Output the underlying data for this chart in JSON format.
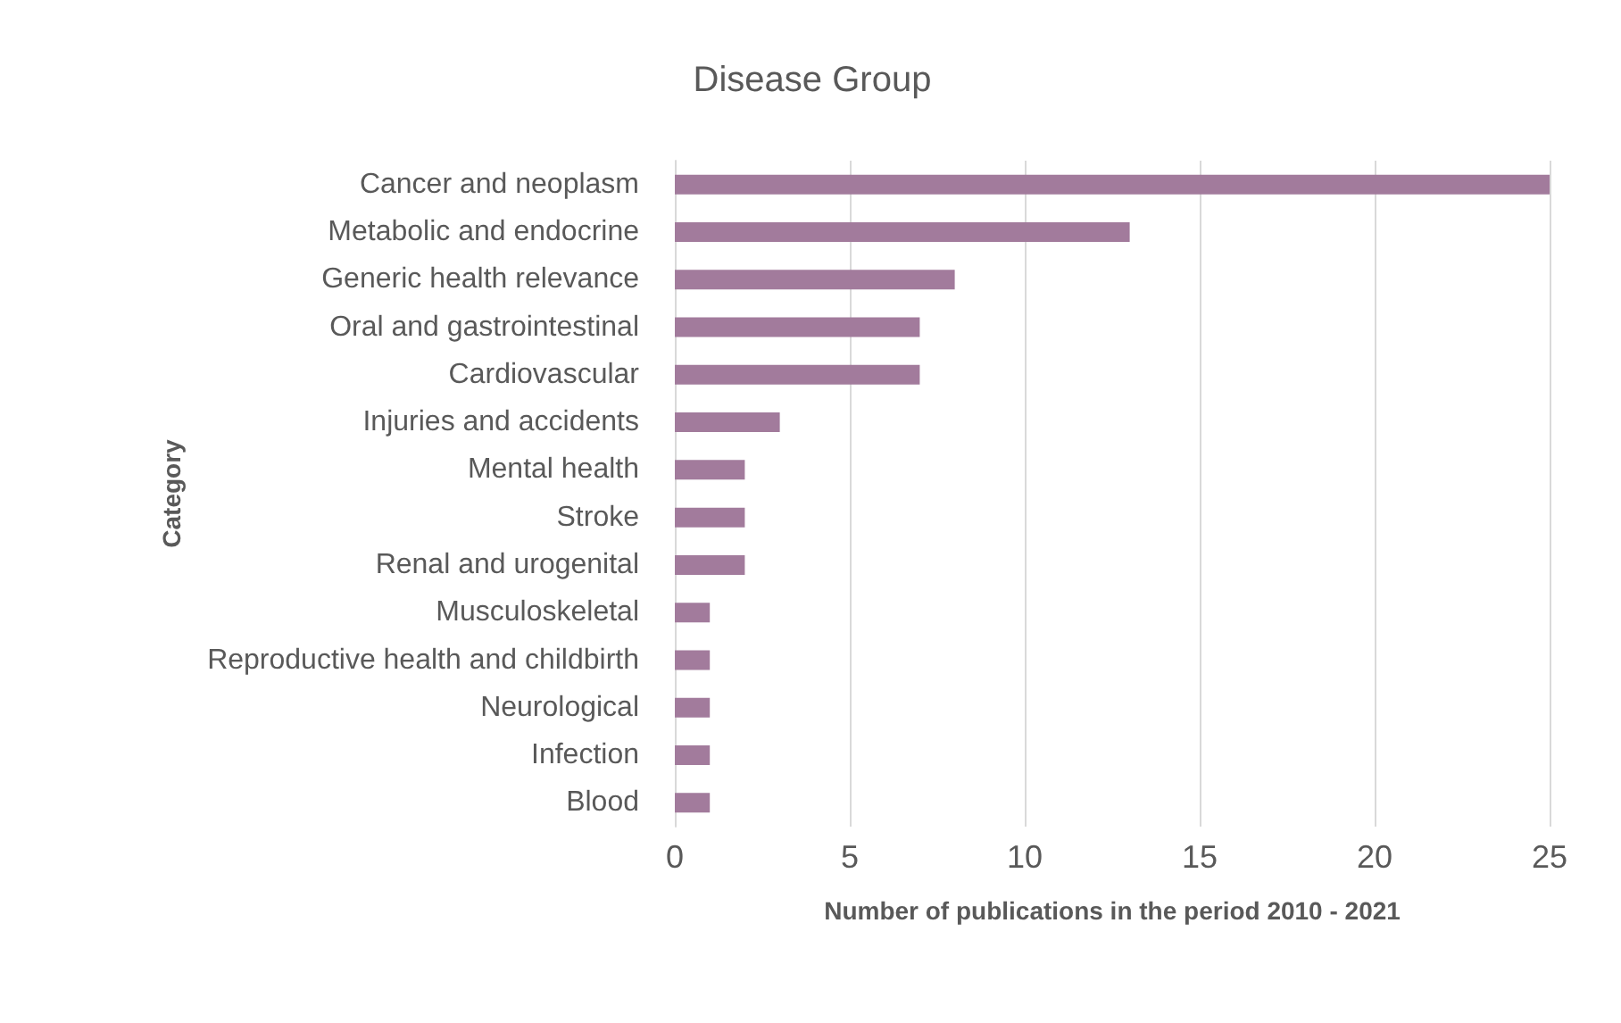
{
  "chart_data": {
    "type": "bar",
    "title": "Disease Group",
    "xlabel": "Number of publications in the period 2010 - 2021",
    "ylabel": "Category",
    "orientation": "horizontal",
    "categories": [
      "Cancer and neoplasm",
      "Metabolic and endocrine",
      "Generic health relevance",
      "Oral and gastrointestinal",
      "Cardiovascular",
      "Injuries and accidents",
      "Mental health",
      "Stroke",
      "Renal and urogenital",
      "Musculoskeletal",
      "Reproductive health and childbirth",
      "Neurological",
      "Infection",
      "Blood"
    ],
    "values": [
      25,
      13,
      8,
      7,
      7,
      3,
      2,
      2,
      2,
      1,
      1,
      1,
      1,
      1
    ],
    "color": "#a27b9c",
    "xlim": [
      0,
      25
    ],
    "xticks": [
      0,
      5,
      10,
      15,
      20,
      25
    ],
    "grid": "x"
  }
}
